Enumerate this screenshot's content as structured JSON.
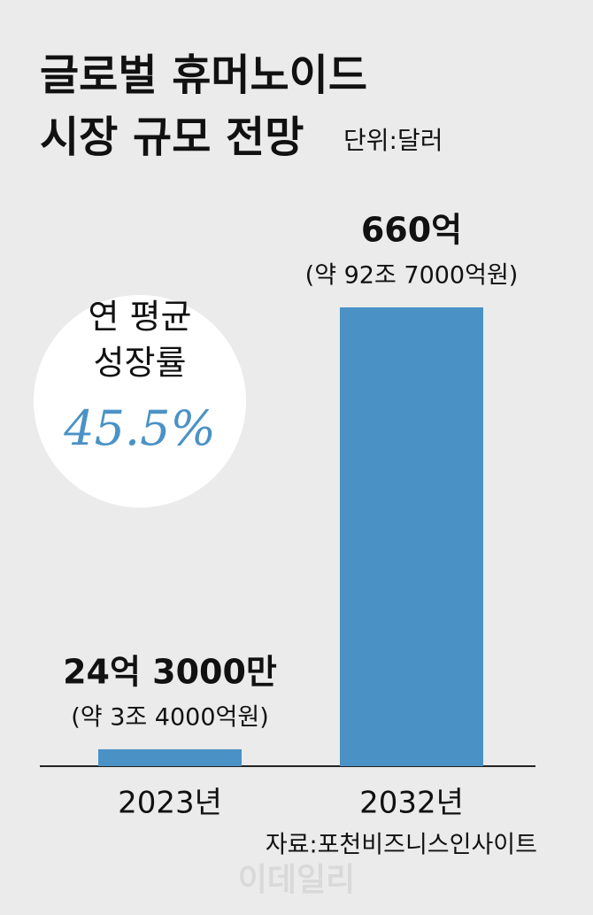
{
  "chart_data": {
    "type": "bar",
    "title_lines": [
      "글로벌 휴머노이드",
      "시장 규모 전망"
    ],
    "unit": "단위:달러",
    "categories": [
      "2023년",
      "2032년"
    ],
    "values": [
      24.3,
      660
    ],
    "value_labels": [
      "24억 3000만",
      "660억"
    ],
    "value_sublabels": [
      "(약 3조 4000억원)",
      "(약 92조 7000억원)"
    ],
    "color": "#4a92c6",
    "ylim": [
      0,
      660
    ],
    "badge": {
      "lines": [
        "연 평균",
        "성장률"
      ],
      "value": "45.5%"
    },
    "source": "자료:포천비즈니스인사이트",
    "watermark": "이데일리"
  }
}
